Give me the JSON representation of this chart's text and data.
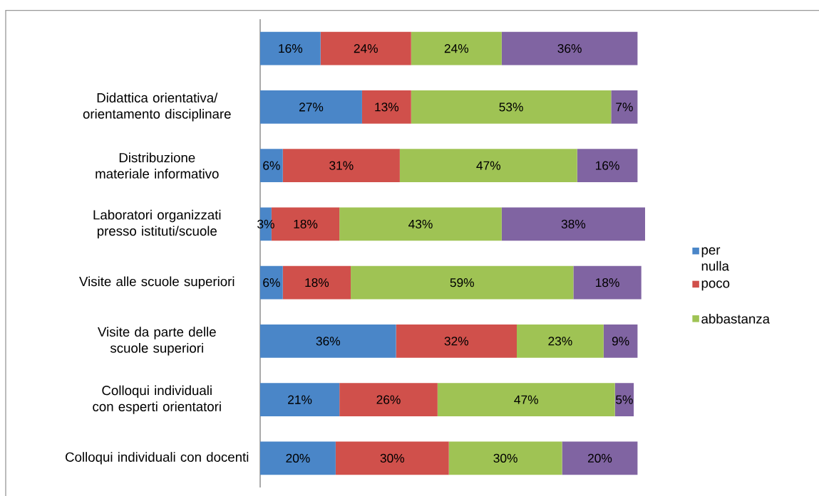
{
  "chart_data": {
    "type": "bar",
    "orientation": "horizontal",
    "stacked": true,
    "categories": [
      null,
      "Didattica orientativa/ orientamento disciplinare",
      "Distribuzione materiale informativo",
      "Laboratori organizzati presso istituti/scuole",
      "Visite alle scuole superiori",
      "Visite da parte delle scuole superiori",
      "Colloqui individuali con esperti orientatori",
      "Colloqui individuali con docenti"
    ],
    "series": [
      {
        "name": "per nulla",
        "color": "#4a86c8",
        "values": [
          16,
          27,
          6,
          3,
          6,
          36,
          21,
          20
        ],
        "value_labels": [
          "16%",
          "27%",
          "6%",
          "3%",
          "6%",
          "36%",
          "21%",
          "20%"
        ]
      },
      {
        "name": "poco",
        "color": "#d0504b",
        "values": [
          24,
          13,
          31,
          18,
          18,
          32,
          26,
          30
        ],
        "value_labels": [
          "24%",
          "13%",
          "31%",
          "18%",
          "18%",
          "32%",
          "26%",
          "30%"
        ]
      },
      {
        "name": "abbastanza",
        "color": "#9fc354",
        "values": [
          24,
          53,
          47,
          43,
          59,
          23,
          47,
          30
        ],
        "value_labels": [
          "24%",
          "53%",
          "47%",
          "43%",
          "59%",
          "23%",
          "47%",
          "30%"
        ]
      },
      {
        "color": "#8064a2",
        "values": [
          36,
          7,
          16,
          38,
          18,
          9,
          5,
          20
        ],
        "value_labels": [
          "36%",
          "7%",
          "16%",
          "38%",
          "18%",
          "9%",
          "5%",
          "20%"
        ]
      }
    ],
    "legend": "right"
  }
}
